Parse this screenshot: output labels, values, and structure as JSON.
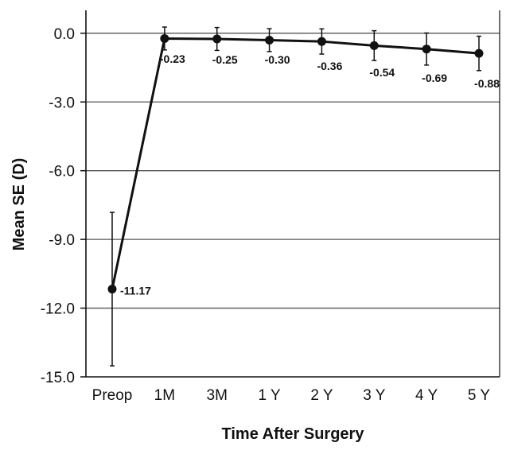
{
  "chart_data": {
    "type": "line",
    "title": "",
    "xlabel": "Time After Surgery",
    "ylabel": "Mean SE (D)",
    "categories": [
      "Preop",
      "1M",
      "3M",
      "1 Y",
      "2 Y",
      "3 Y",
      "4 Y",
      "5 Y"
    ],
    "series": [
      {
        "values": [
          -11.17,
          -0.23,
          -0.25,
          -0.3,
          -0.36,
          -0.54,
          -0.69,
          -0.88
        ],
        "error": [
          3.35,
          0.5,
          0.5,
          0.5,
          0.55,
          0.65,
          0.7,
          0.75
        ],
        "labels": [
          "-11.17",
          "-0.23",
          "-0.25",
          "-0.30",
          "-0.36",
          "-0.54",
          "-0.69",
          "-0.88"
        ]
      }
    ],
    "ylim": [
      -15.0,
      1.0
    ],
    "yticks": [
      0.0,
      -3.0,
      -6.0,
      -9.0,
      -12.0,
      -15.0
    ],
    "ytick_labels": [
      "0.0",
      "-3.0",
      "-6.0",
      "-9.0",
      "-12.0",
      "-15.0"
    ],
    "grid": true,
    "line_color": "#111111",
    "grid_color": "#555555"
  }
}
